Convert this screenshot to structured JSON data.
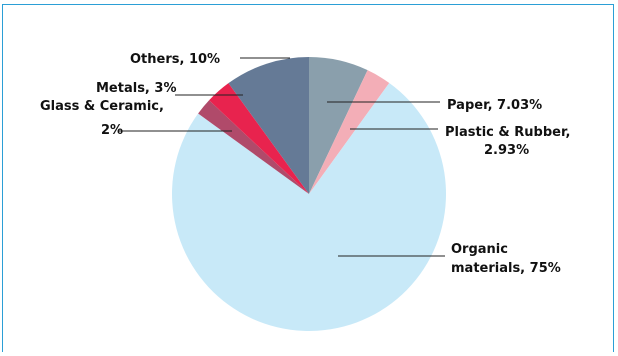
{
  "chart_data": {
    "type": "pie",
    "title": "",
    "slices": [
      {
        "label": "Paper",
        "value": 7.03,
        "display": "Paper, 7.03%",
        "color": "#8a9fac"
      },
      {
        "label": "Plastic & Rubber",
        "value": 2.93,
        "display_lines": [
          "Plastic & Rubber,",
          "2.93%"
        ],
        "color": "#f3aeb7"
      },
      {
        "label": "Organic materials",
        "value": 75,
        "display_lines": [
          "Organic",
          "materials, 75%"
        ],
        "color": "#c8e9f8"
      },
      {
        "label": "Glass & Ceramic",
        "value": 2,
        "display_lines": [
          "Glass & Ceramic,",
          "2%"
        ],
        "color": "#b04a6a"
      },
      {
        "label": "Metals",
        "value": 3,
        "display": "Metals, 3%",
        "color": "#e8234e"
      },
      {
        "label": "Others",
        "value": 10,
        "display": "Others, 10%",
        "color": "#657a96"
      }
    ],
    "start_angle_deg": 0,
    "direction": "clockwise",
    "leader_color": "#222222",
    "frame_color": "#2b9fd6"
  }
}
